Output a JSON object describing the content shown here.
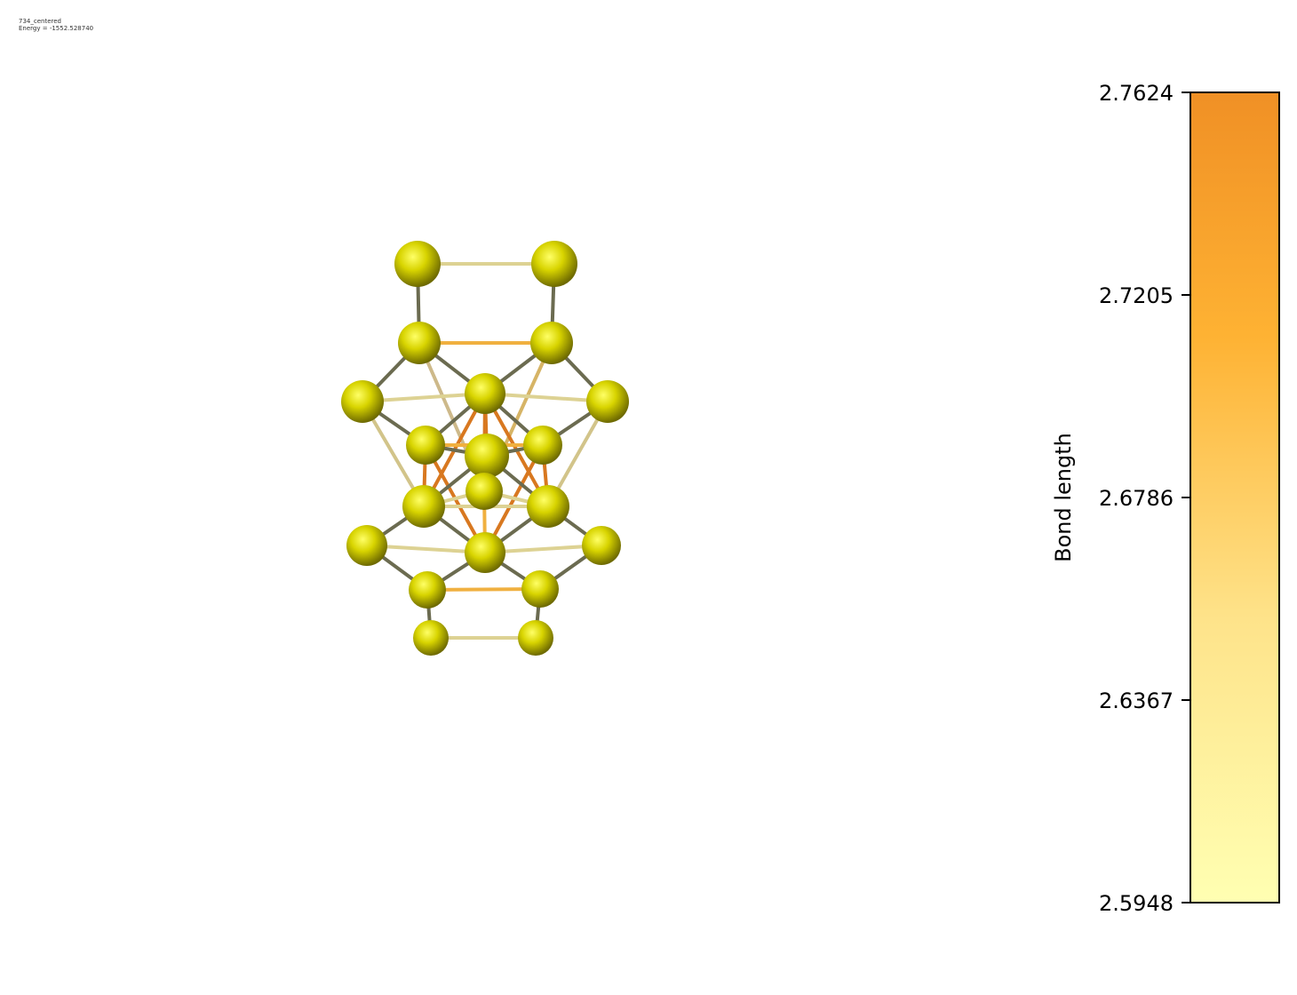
{
  "header": {
    "name": "734_centered",
    "energy": "Energy = -1552.528740"
  },
  "chart_data": {
    "type": "molecule-colorbar",
    "colorbar": {
      "label": "Bond length",
      "min": 2.5948,
      "max": 2.7624,
      "ticks": [
        "2.7624",
        "2.7205",
        "2.6786",
        "2.6367",
        "2.5948"
      ],
      "colors": {
        "low": "#ffffb2",
        "mid": "#feb233",
        "high": "#f09025"
      }
    },
    "atom_color": "#c8c800"
  }
}
